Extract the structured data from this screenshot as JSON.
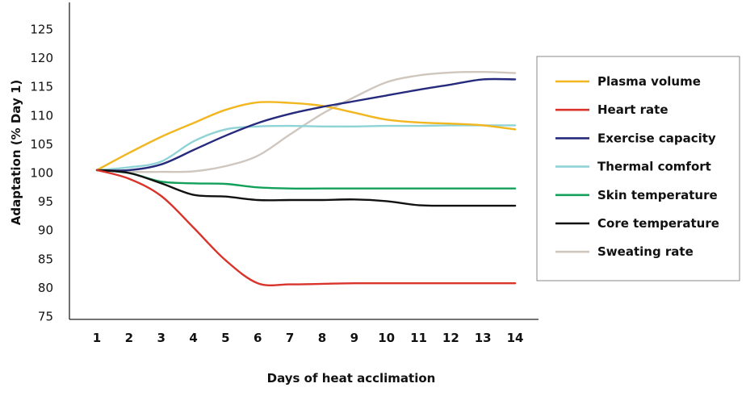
{
  "chart_data": {
    "type": "line",
    "title": "",
    "xlabel": "Days of heat acclimation",
    "ylabel": "Adaptation (% Day 1)",
    "x": [
      1,
      2,
      3,
      4,
      5,
      6,
      7,
      8,
      9,
      10,
      11,
      12,
      13,
      14
    ],
    "xticks": [
      "1",
      "2",
      "3",
      "4",
      "5",
      "6",
      "7",
      "8",
      "9",
      "10",
      "11",
      "12",
      "13",
      "14"
    ],
    "yticks": [
      "75",
      "80",
      "85",
      "90",
      "95",
      "100",
      "105",
      "110",
      "115",
      "120",
      "125"
    ],
    "ylim": [
      75,
      128
    ],
    "grid": false,
    "legend_position": "right",
    "series": [
      {
        "name": "Plasma volume",
        "color": "#F2B61F",
        "values": [
          100.5,
          103.5,
          106.3,
          108.7,
          111.0,
          112.3,
          112.2,
          111.7,
          110.5,
          109.3,
          108.8,
          108.6,
          108.3,
          107.6
        ]
      },
      {
        "name": "Heart rate",
        "color": "#D9332B",
        "values": [
          100.5,
          99.0,
          96.0,
          90.5,
          84.8,
          80.8,
          80.6,
          80.7,
          80.8,
          80.8,
          80.8,
          80.8,
          80.8,
          80.8
        ]
      },
      {
        "name": "Exercise capacity",
        "color": "#262A7C",
        "values": [
          100.5,
          100.5,
          101.5,
          104.0,
          106.5,
          108.7,
          110.3,
          111.5,
          112.5,
          113.5,
          114.5,
          115.4,
          116.3,
          116.3
        ]
      },
      {
        "name": "Thermal comfort",
        "color": "#8FD3D7",
        "values": [
          100.5,
          101.0,
          102.0,
          105.5,
          107.6,
          108.1,
          108.2,
          108.1,
          108.1,
          108.2,
          108.2,
          108.3,
          108.3,
          108.3
        ]
      },
      {
        "name": "Skin temperature",
        "color": "#13A05A",
        "values": [
          100.5,
          100.0,
          98.5,
          98.2,
          98.1,
          97.5,
          97.3,
          97.3,
          97.3,
          97.3,
          97.3,
          97.3,
          97.3,
          97.3
        ]
      },
      {
        "name": "Core temperature",
        "color": "#111111",
        "values": [
          100.5,
          100.0,
          98.2,
          96.2,
          95.9,
          95.3,
          95.3,
          95.3,
          95.4,
          95.1,
          94.4,
          94.3,
          94.3,
          94.3
        ]
      },
      {
        "name": "Sweating rate",
        "color": "#CFC6BE",
        "values": [
          100.5,
          100.2,
          100.2,
          100.3,
          101.2,
          103.0,
          106.7,
          110.3,
          113.2,
          115.8,
          117.0,
          117.5,
          117.6,
          117.4
        ]
      }
    ]
  }
}
